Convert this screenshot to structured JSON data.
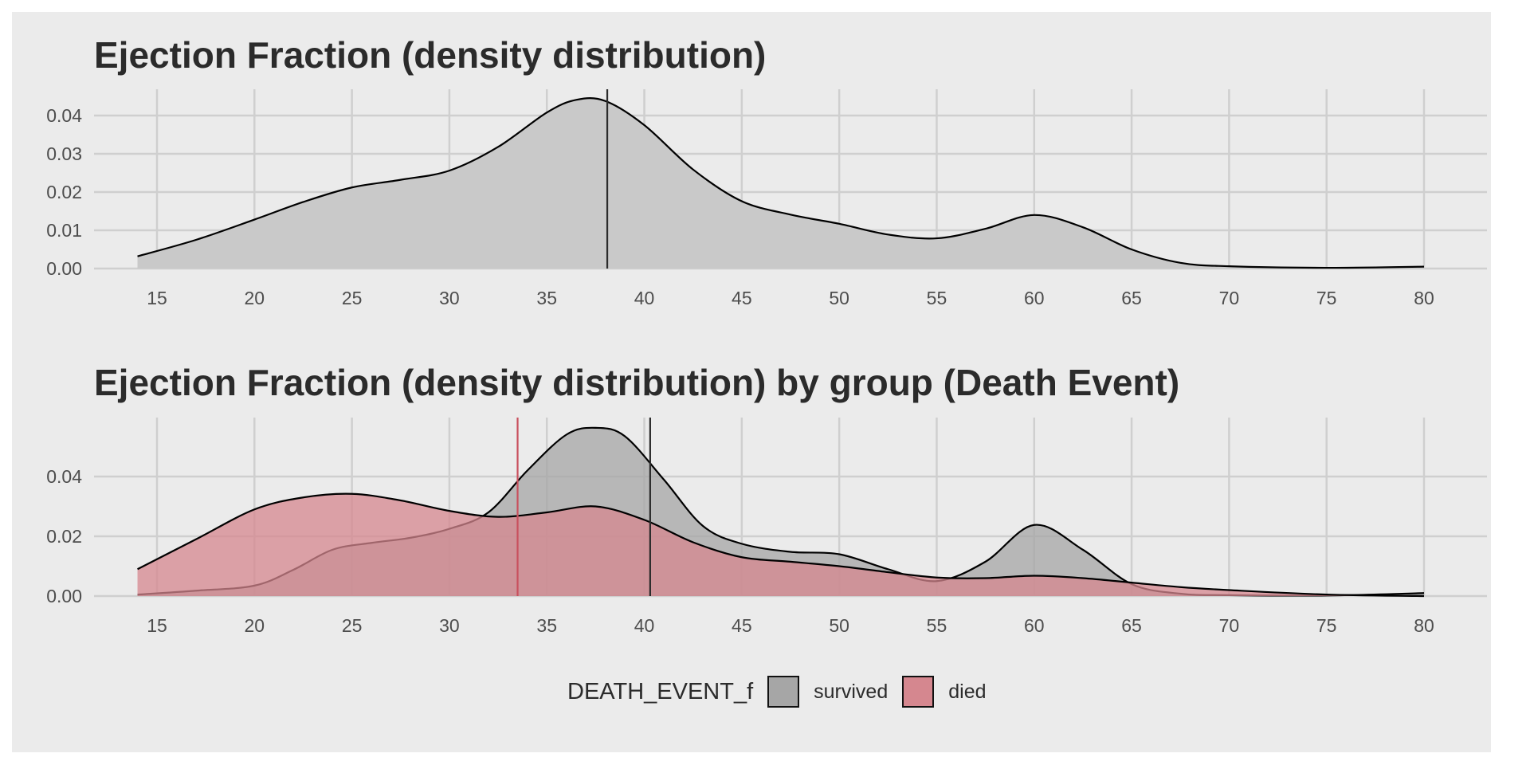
{
  "chart_data": [
    {
      "type": "area",
      "title": "Ejection Fraction (density distribution)",
      "xlim": [
        14,
        80
      ],
      "ylim": [
        0,
        0.045
      ],
      "x_ticks": [
        15,
        20,
        25,
        30,
        35,
        40,
        45,
        50,
        55,
        60,
        65,
        70,
        75,
        80
      ],
      "y_ticks": [
        0.0,
        0.01,
        0.02,
        0.03,
        0.04
      ],
      "y_tick_labels": [
        "0.00",
        "0.01",
        "0.02",
        "0.03",
        "0.04"
      ],
      "grid": true,
      "series": [
        {
          "fill": "#c9c9c9",
          "x": [
            14,
            17,
            20,
            22.5,
            25,
            27.5,
            30,
            32.5,
            35,
            36.5,
            38,
            40,
            42.5,
            45,
            47.5,
            50,
            52.5,
            55,
            57.5,
            60,
            62.5,
            65,
            67.5,
            70,
            75,
            80
          ],
          "y": [
            0.0032,
            0.0075,
            0.0128,
            0.0174,
            0.0212,
            0.0232,
            0.0256,
            0.0318,
            0.0408,
            0.0441,
            0.0438,
            0.0375,
            0.0259,
            0.0176,
            0.0141,
            0.0117,
            0.0089,
            0.0079,
            0.0104,
            0.014,
            0.0108,
            0.005,
            0.0015,
            0.0006,
            0.0002,
            0.0005
          ]
        }
      ],
      "vlines": [
        {
          "x": 38.1,
          "color": "#2b2b2b"
        }
      ]
    },
    {
      "type": "area",
      "title": "Ejection Fraction (density distribution) by group (Death Event)",
      "xlim": [
        14,
        80
      ],
      "ylim": [
        0,
        0.057
      ],
      "x_ticks": [
        15,
        20,
        25,
        30,
        35,
        40,
        45,
        50,
        55,
        60,
        65,
        70,
        75,
        80
      ],
      "y_ticks": [
        0.0,
        0.02,
        0.04
      ],
      "y_tick_labels": [
        "0.00",
        "0.02",
        "0.04"
      ],
      "grid": true,
      "legend_position": "bottom",
      "legend_title": "DEATH_EVENT_f",
      "series": [
        {
          "name": "survived",
          "fill": "#a6a6a6",
          "x": [
            14,
            17,
            20,
            22,
            24,
            26,
            28,
            30,
            32,
            34,
            36,
            37.5,
            39,
            41,
            43,
            45,
            47.5,
            50,
            52.5,
            55,
            57.5,
            60,
            62.5,
            65,
            67.5,
            70,
            75,
            80
          ],
          "y": [
            0.0005,
            0.0018,
            0.0035,
            0.0088,
            0.0155,
            0.0178,
            0.0195,
            0.0225,
            0.028,
            0.042,
            0.054,
            0.0563,
            0.0535,
            0.039,
            0.0235,
            0.0175,
            0.0148,
            0.014,
            0.009,
            0.005,
            0.0115,
            0.0238,
            0.0155,
            0.004,
            0.0008,
            0.0003,
            0.0002,
            0.001
          ]
        },
        {
          "name": "died",
          "fill": "#d5878f",
          "x": [
            14,
            17,
            20,
            22.5,
            25,
            27.5,
            30,
            32.5,
            35,
            37.5,
            40,
            42.5,
            45,
            47.5,
            50,
            52.5,
            55,
            57.5,
            60,
            62.5,
            65,
            67.5,
            70,
            75,
            80
          ],
          "y": [
            0.009,
            0.019,
            0.029,
            0.033,
            0.0342,
            0.032,
            0.0285,
            0.0265,
            0.028,
            0.03,
            0.0255,
            0.018,
            0.013,
            0.0115,
            0.01,
            0.008,
            0.0062,
            0.006,
            0.0068,
            0.006,
            0.0045,
            0.003,
            0.002,
            0.0005,
            0.0
          ]
        }
      ],
      "vlines": [
        {
          "x": 33.5,
          "color": "#c9505e"
        },
        {
          "x": 40.3,
          "color": "#2b2b2b"
        }
      ]
    }
  ],
  "legend": {
    "title": "DEATH_EVENT_f",
    "items": [
      {
        "label": "survived",
        "fill": "#a6a6a6"
      },
      {
        "label": "died",
        "fill": "#d5878f"
      }
    ]
  }
}
